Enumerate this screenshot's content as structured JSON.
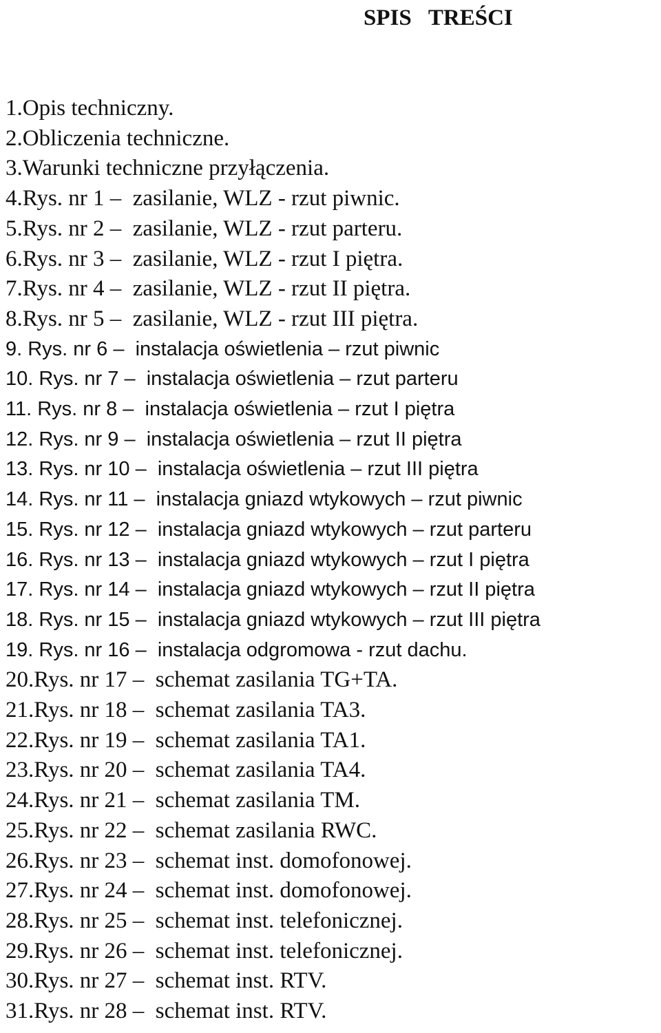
{
  "document": {
    "title": "SPIS   TREŚCI",
    "entries": [
      {
        "text": "1.Opis techniczny.",
        "style": "serif"
      },
      {
        "text": "2.Obliczenia techniczne.",
        "style": "serif"
      },
      {
        "text": "3.Warunki techniczne przyłączenia.",
        "style": "serif"
      },
      {
        "text": "4.Rys. nr 1 –  zasilanie, WLZ - rzut piwnic.",
        "style": "serif"
      },
      {
        "text": "5.Rys. nr 2 –  zasilanie, WLZ - rzut parteru.",
        "style": "serif"
      },
      {
        "text": "6.Rys. nr 3 –  zasilanie, WLZ - rzut I piętra.",
        "style": "serif"
      },
      {
        "text": "7.Rys. nr 4 –  zasilanie, WLZ - rzut II piętra.",
        "style": "serif"
      },
      {
        "text": "8.Rys. nr 5 –  zasilanie, WLZ - rzut III piętra.",
        "style": "serif"
      },
      {
        "text": "9. Rys. nr 6 –  instalacja oświetlenia – rzut piwnic",
        "style": "sans"
      },
      {
        "text": "10. Rys. nr 7 –  instalacja oświetlenia – rzut parteru",
        "style": "sans"
      },
      {
        "text": "11. Rys. nr 8 –  instalacja oświetlenia – rzut I piętra",
        "style": "sans"
      },
      {
        "text": "12. Rys. nr 9 –  instalacja oświetlenia – rzut II piętra",
        "style": "sans"
      },
      {
        "text": "13. Rys. nr 10 –  instalacja oświetlenia – rzut III piętra",
        "style": "sans"
      },
      {
        "text": "14. Rys. nr 11 –  instalacja gniazd wtykowych – rzut piwnic",
        "style": "sans"
      },
      {
        "text": "15. Rys. nr 12 –  instalacja gniazd wtykowych – rzut parteru",
        "style": "sans"
      },
      {
        "text": "16. Rys. nr 13 –  instalacja gniazd wtykowych – rzut I piętra",
        "style": "sans"
      },
      {
        "text": "17. Rys. nr 14 –  instalacja gniazd wtykowych – rzut II piętra",
        "style": "sans"
      },
      {
        "text": "18. Rys. nr 15 –  instalacja gniazd wtykowych – rzut III piętra",
        "style": "sans"
      },
      {
        "text": "19. Rys. nr 16 –  instalacja odgromowa - rzut dachu.",
        "style": "sans"
      },
      {
        "text": "20.Rys. nr 17 –  schemat zasilania TG+TA.",
        "style": "serif"
      },
      {
        "text": "21.Rys. nr 18 –  schemat zasilania TA3.",
        "style": "serif"
      },
      {
        "text": "22.Rys. nr 19 –  schemat zasilania TA1.",
        "style": "serif"
      },
      {
        "text": "23.Rys. nr 20 –  schemat zasilania TA4.",
        "style": "serif"
      },
      {
        "text": "24.Rys. nr 21 –  schemat zasilania TM.",
        "style": "serif"
      },
      {
        "text": "25.Rys. nr 22 –  schemat zasilania RWC.",
        "style": "serif"
      },
      {
        "text": "26.Rys. nr 23 –  schemat inst. domofonowej.",
        "style": "serif"
      },
      {
        "text": "27.Rys. nr 24 –  schemat inst. domofonowej.",
        "style": "serif"
      },
      {
        "text": "28.Rys. nr 25 –  schemat inst. telefonicznej.",
        "style": "serif"
      },
      {
        "text": "29.Rys. nr 26 –  schemat inst. telefonicznej.",
        "style": "serif"
      },
      {
        "text": "30.Rys. nr 27 –  schemat inst. RTV.",
        "style": "serif"
      },
      {
        "text": "31.Rys. nr 28 –  schemat inst. RTV.",
        "style": "serif"
      }
    ]
  }
}
